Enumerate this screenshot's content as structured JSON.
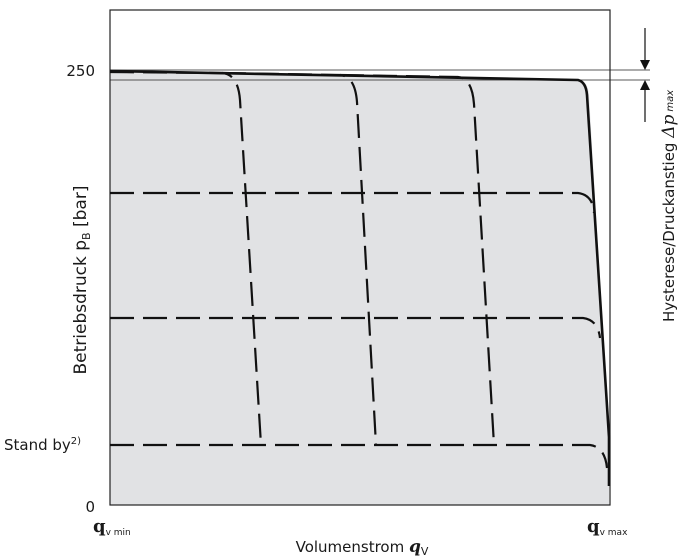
{
  "diagram": {
    "y_axis_label": "Betriebsdruck p",
    "y_axis_label_sub": "B",
    "y_axis_label_unit": " [bar]",
    "y_tick_250": "250",
    "y_tick_standby": "Stand by",
    "y_tick_standby_sup": "2)",
    "y_tick_0": "0",
    "x_axis_label": "Volumenstrom ",
    "x_axis_symbol": "q",
    "x_axis_symbol_sub": "V",
    "x_tick_min": "q",
    "x_tick_min_sub": "v min",
    "x_tick_max": "q",
    "x_tick_max_sub": "v max",
    "hysteresis_label": "Hysterese/Druckanstieg ",
    "hysteresis_symbol": "Δp",
    "hysteresis_sub": "max"
  },
  "colors": {
    "fill_region": "#e1e2e4",
    "line": "#111111"
  }
}
